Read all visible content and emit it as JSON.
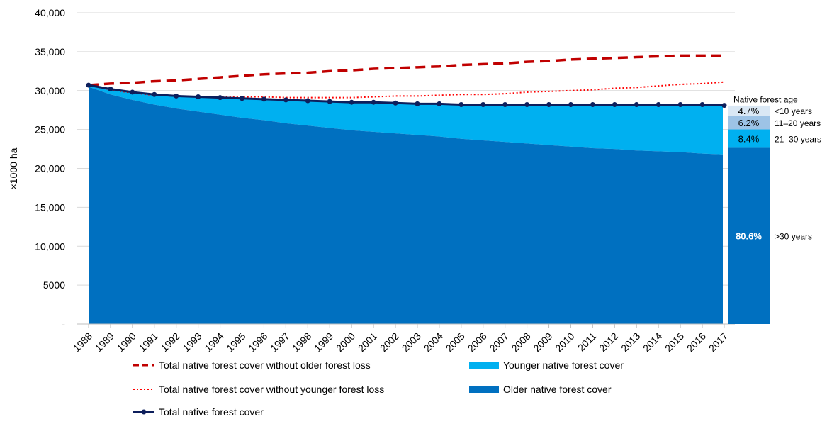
{
  "chart_data": {
    "type": "area",
    "ylabel": "×1000 ha",
    "xlabel": "",
    "ylim": [
      0,
      40000
    ],
    "yticks": [
      {
        "v": 0,
        "label": "-"
      },
      {
        "v": 5000,
        "label": "5000"
      },
      {
        "v": 10000,
        "label": "10,000"
      },
      {
        "v": 15000,
        "label": "15,000"
      },
      {
        "v": 20000,
        "label": "20,000"
      },
      {
        "v": 25000,
        "label": "25,000"
      },
      {
        "v": 30000,
        "label": "30,000"
      },
      {
        "v": 35000,
        "label": "35,000"
      },
      {
        "v": 40000,
        "label": "40,000"
      }
    ],
    "x": [
      "1988",
      "1989",
      "1990",
      "1991",
      "1992",
      "1993",
      "1994",
      "1995",
      "1996",
      "1997",
      "1998",
      "1999",
      "2000",
      "2001",
      "2002",
      "2003",
      "2004",
      "2005",
      "2006",
      "2007",
      "2008",
      "2009",
      "2010",
      "2011",
      "2012",
      "2013",
      "2014",
      "2015",
      "2016",
      "2017"
    ],
    "series": [
      {
        "name": "Total native forest cover without older forest loss",
        "style": "dashed",
        "color": "#c00000",
        "values": [
          30700,
          30900,
          31000,
          31200,
          31300,
          31500,
          31700,
          31900,
          32100,
          32200,
          32300,
          32500,
          32600,
          32800,
          32900,
          33000,
          33100,
          33300,
          33400,
          33500,
          33700,
          33800,
          34000,
          34100,
          34200,
          34300,
          34400,
          34500,
          34500,
          34500
        ]
      },
      {
        "name": "Total native forest cover without younger forest loss",
        "style": "dotted",
        "color": "#ff0000",
        "values": [
          30700,
          30100,
          29700,
          29400,
          29300,
          29200,
          29200,
          29200,
          29200,
          29100,
          29100,
          29100,
          29100,
          29200,
          29300,
          29300,
          29400,
          29500,
          29500,
          29600,
          29800,
          29900,
          30000,
          30100,
          30300,
          30400,
          30600,
          30800,
          30900,
          31100
        ]
      },
      {
        "name": "Total native forest cover",
        "style": "line-marker",
        "color": "#0d1f5c",
        "values": [
          30700,
          30200,
          29800,
          29500,
          29300,
          29200,
          29100,
          29000,
          28900,
          28800,
          28700,
          28600,
          28500,
          28500,
          28400,
          28300,
          28300,
          28200,
          28200,
          28200,
          28200,
          28200,
          28200,
          28200,
          28200,
          28200,
          28200,
          28200,
          28200,
          28100
        ]
      },
      {
        "name": "Older native forest cover",
        "style": "area",
        "color": "#0070c0",
        "values": [
          30500,
          29500,
          28800,
          28200,
          27700,
          27300,
          26900,
          26500,
          26200,
          25800,
          25500,
          25200,
          24900,
          24700,
          24500,
          24300,
          24100,
          23800,
          23600,
          23400,
          23200,
          23000,
          22800,
          22600,
          22500,
          22300,
          22200,
          22100,
          21900,
          21800
        ]
      },
      {
        "name": "Younger native forest cover",
        "style": "area-stacked",
        "color": "#00b0f0",
        "values": [
          200,
          700,
          1000,
          1300,
          1600,
          1900,
          2200,
          2500,
          2700,
          3000,
          3200,
          3400,
          3600,
          3800,
          3900,
          4000,
          4200,
          4400,
          4600,
          4800,
          5000,
          5200,
          5400,
          5600,
          5700,
          5900,
          6000,
          6100,
          6300,
          6300
        ]
      }
    ],
    "age_breakdown": {
      "title": "Native forest age",
      "segments": [
        {
          "pct": "80.6%",
          "range": ">30 years",
          "value": 80.6,
          "color": "#0070c0"
        },
        {
          "pct": "8.4%",
          "range": "21–30 years",
          "value": 8.4,
          "color": "#00b0f0"
        },
        {
          "pct": "6.2%",
          "range": "11–20 years",
          "value": 6.2,
          "color": "#9dc3e6"
        },
        {
          "pct": "4.7%",
          "range": "<10 years",
          "value": 4.7,
          "color": "#dae8f5"
        }
      ]
    },
    "legend": [
      {
        "label": "Total native forest cover without older forest loss",
        "style": "dashed",
        "color": "#c00000"
      },
      {
        "label": "Younger native forest cover",
        "style": "box",
        "color": "#00b0f0"
      },
      {
        "label": "Total native forest cover without younger forest loss",
        "style": "dotted",
        "color": "#ff0000"
      },
      {
        "label": "Older native forest cover",
        "style": "box",
        "color": "#0070c0"
      },
      {
        "label": "Total native forest cover",
        "style": "line-marker",
        "color": "#0d1f5c"
      }
    ]
  }
}
